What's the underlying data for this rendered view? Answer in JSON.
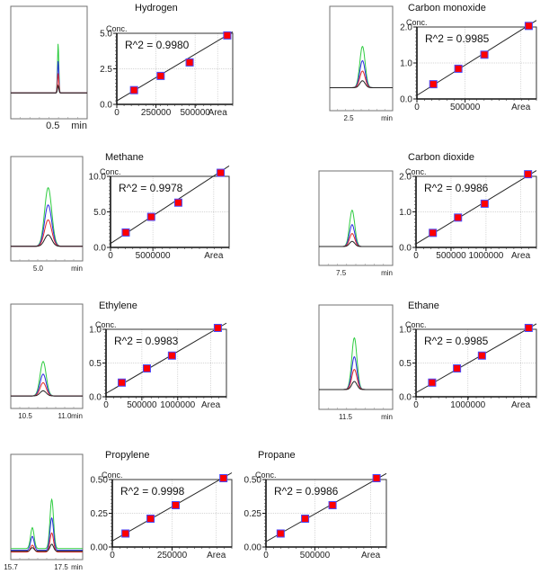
{
  "colors": {
    "standard_1": "#2ecc40",
    "standard_2": "#2a2ae0",
    "standard_3": "#e02a2a",
    "standard_4": "#222222",
    "marker_fill": "#ff0000",
    "marker_edge": "#4a4aff",
    "fit_line": "#222222",
    "grid": "#c8c8c8"
  },
  "chart_data": [
    {
      "type": "scatter",
      "compound": "Hydrogen",
      "title": "Hydrogen",
      "ylabel": "Conc.",
      "xlabel": "Area",
      "annotation": "R^2 = 0.9980",
      "x_ticks": [
        0,
        250000,
        500000
      ],
      "x_tick_labels": [
        "0",
        "250000",
        "500000"
      ],
      "y_ticks": [
        0.0,
        2.5,
        5.0
      ],
      "y_tick_labels": [
        "0.0",
        "2.5",
        "5.0"
      ],
      "xlim": [
        0,
        740000
      ],
      "ylim": [
        0,
        5.0
      ],
      "points": [
        [
          110000,
          1.0
        ],
        [
          280000,
          2.0
        ],
        [
          465000,
          2.95
        ],
        [
          705000,
          4.85
        ]
      ],
      "fit": {
        "slope": 6.55e-06,
        "intercept": 0.25
      },
      "chromatogram": {
        "axis_label": "min",
        "tick_labels": [
          "0.5"
        ],
        "peaks": [
          {
            "pos": 0.62,
            "width": 0.012,
            "heights": [
              0.8,
              0.52,
              0.32,
              0.12
            ]
          }
        ],
        "baseline_offsets": [
          0,
          0,
          0,
          0
        ]
      }
    },
    {
      "type": "scatter",
      "compound": "Carbon monoxide",
      "title": "Carbon monoxide",
      "ylabel": "Conc.",
      "xlabel": "Area",
      "annotation": "R^2 = 0.9985",
      "x_ticks": [
        0,
        500000
      ],
      "x_tick_labels": [
        "0",
        "500000"
      ],
      "y_ticks": [
        0.0,
        1.0,
        2.0
      ],
      "y_tick_labels": [
        "0.0",
        "1.0",
        "2.0"
      ],
      "xlim": [
        0,
        1240000
      ],
      "ylim": [
        0,
        2.0
      ],
      "points": [
        [
          170000,
          0.41
        ],
        [
          430000,
          0.84
        ],
        [
          700000,
          1.23
        ],
        [
          1160000,
          2.03
        ]
      ],
      "fit": {
        "slope": 1.68e-06,
        "intercept": 0.1
      },
      "chromatogram": {
        "axis_label": "min",
        "tick_labels": [
          "2.5"
        ],
        "peaks": [
          {
            "pos": 0.52,
            "width": 0.06,
            "heights": [
              0.72,
              0.47,
              0.29,
              0.12
            ]
          }
        ],
        "baseline_offsets": [
          0,
          0,
          0,
          0
        ]
      }
    },
    {
      "type": "scatter",
      "compound": "Methane",
      "title": "Methane",
      "ylabel": "Conc.",
      "xlabel": "Area",
      "annotation": "R^2 = 0.9978",
      "x_ticks": [
        0,
        5000000
      ],
      "x_tick_labels": [
        "0",
        "5000000"
      ],
      "y_ticks": [
        0.0,
        5.0,
        10.0
      ],
      "y_tick_labels": [
        "0.0",
        "5.0",
        "10.0"
      ],
      "xlim": [
        0,
        14000000
      ],
      "ylim": [
        0,
        10.0
      ],
      "points": [
        [
          1800000,
          2.1
        ],
        [
          4800000,
          4.3
        ],
        [
          8000000,
          6.3
        ],
        [
          13000000,
          10.5
        ]
      ],
      "fit": {
        "slope": 7.8e-07,
        "intercept": 0.55
      },
      "chromatogram": {
        "axis_label": "min",
        "tick_labels": [
          "5.0"
        ],
        "peaks": [
          {
            "pos": 0.52,
            "width": 0.07,
            "heights": [
              1.02,
              0.72,
              0.46,
              0.2
            ]
          }
        ],
        "baseline_offsets": [
          0,
          0,
          0,
          0
        ]
      }
    },
    {
      "type": "scatter",
      "compound": "Carbon dioxide",
      "title": "Carbon dioxide",
      "ylabel": "Conc.",
      "xlabel": "Area",
      "annotation": "R^2 = 0.9986",
      "x_ticks": [
        0,
        500000,
        1000000
      ],
      "x_tick_labels": [
        "0",
        "500000",
        "1000000"
      ],
      "y_ticks": [
        0.0,
        1.0,
        2.0
      ],
      "y_tick_labels": [
        "0.0",
        "1.0",
        "2.0"
      ],
      "xlim": [
        0,
        1720000
      ],
      "ylim": [
        0,
        2.0
      ],
      "points": [
        [
          240000,
          0.41
        ],
        [
          600000,
          0.84
        ],
        [
          980000,
          1.23
        ],
        [
          1600000,
          2.06
        ]
      ],
      "fit": {
        "slope": 1.2e-06,
        "intercept": 0.1
      },
      "chromatogram": {
        "axis_label": "min",
        "tick_labels": [
          "7.5"
        ],
        "peaks": [
          {
            "pos": 0.45,
            "width": 0.05,
            "heights": [
              0.7,
              0.42,
              0.25,
              0.1
            ]
          }
        ],
        "baseline_offsets": [
          0,
          0,
          0,
          0
        ]
      }
    },
    {
      "type": "scatter",
      "compound": "Ethylene",
      "title": "Ethylene",
      "ylabel": "Conc.",
      "xlabel": "Area",
      "annotation": "R^2 = 0.9983",
      "x_ticks": [
        0,
        500000,
        1000000
      ],
      "x_tick_labels": [
        "0",
        "500000",
        "1000000"
      ],
      "y_ticks": [
        0.0,
        0.5,
        1.0
      ],
      "y_tick_labels": [
        "0.0",
        "0.5",
        "1.0"
      ],
      "xlim": [
        0,
        1680000
      ],
      "ylim": [
        0,
        1.0
      ],
      "points": [
        [
          220000,
          0.21
        ],
        [
          570000,
          0.42
        ],
        [
          920000,
          0.61
        ],
        [
          1560000,
          1.02
        ]
      ],
      "fit": {
        "slope": 6.2e-07,
        "intercept": 0.05
      },
      "chromatogram": {
        "axis_label": "min",
        "tick_labels": [
          "10.5",
          "11.0"
        ],
        "peaks": [
          {
            "pos": 0.45,
            "width": 0.06,
            "heights": [
              0.6,
              0.38,
              0.23,
              0.09
            ]
          }
        ],
        "baseline_offsets": [
          0,
          0,
          0,
          0
        ]
      }
    },
    {
      "type": "scatter",
      "compound": "Ethane",
      "title": "Ethane",
      "ylabel": "Conc.",
      "xlabel": "Area",
      "annotation": "R^2 = 0.9985",
      "x_ticks": [
        0,
        1000000
      ],
      "x_tick_labels": [
        "0",
        "1000000"
      ],
      "y_ticks": [
        0.0,
        0.5,
        1.0
      ],
      "y_tick_labels": [
        "0.0",
        "0.5",
        "1.0"
      ],
      "xlim": [
        0,
        2320000
      ],
      "ylim": [
        0,
        1.0
      ],
      "points": [
        [
          310000,
          0.21
        ],
        [
          790000,
          0.42
        ],
        [
          1270000,
          0.61
        ],
        [
          2170000,
          1.02
        ]
      ],
      "fit": {
        "slope": 4.4e-07,
        "intercept": 0.06
      },
      "chromatogram": {
        "axis_label": "min",
        "tick_labels": [
          "11.5"
        ],
        "peaks": [
          {
            "pos": 0.48,
            "width": 0.05,
            "heights": [
              0.9,
              0.57,
              0.35,
              0.14
            ]
          }
        ],
        "baseline_offsets": [
          0,
          0,
          0,
          0
        ]
      }
    },
    {
      "type": "scatter",
      "compound": "Propylene",
      "title": "Propylene",
      "ylabel": "Conc.",
      "xlabel": "Area",
      "annotation": "R^2 = 0.9998",
      "x_ticks": [
        0,
        250000
      ],
      "x_tick_labels": [
        "0",
        "250000"
      ],
      "y_ticks": [
        0.0,
        0.25,
        0.5
      ],
      "y_tick_labels": [
        "0.00",
        "0.25",
        "0.50"
      ],
      "xlim": [
        0,
        500000
      ],
      "ylim": [
        0,
        0.5
      ],
      "points": [
        [
          55000,
          0.1
        ],
        [
          160000,
          0.21
        ],
        [
          265000,
          0.31
        ],
        [
          465000,
          0.51
        ]
      ],
      "fit": {
        "slope": 1.01e-06,
        "intercept": 0.045
      },
      "chromatogram": {
        "axis_label": "min",
        "tick_labels": [
          "15.7",
          "17.5"
        ],
        "peaks": [
          {
            "pos": 0.3,
            "width": 0.035,
            "heights": [
              0.36,
              0.24,
              0.12,
              0.06
            ]
          },
          {
            "pos": 0.57,
            "width": 0.035,
            "heights": [
              0.85,
              0.56,
              0.33,
              0.12
            ]
          }
        ],
        "baseline_offsets": [
          0.1,
          0.07,
          0.04,
          0.055
        ]
      }
    },
    {
      "type": "scatter",
      "compound": "Propane",
      "title": "Propane",
      "ylabel": "Conc.",
      "xlabel": "Area",
      "annotation": "R^2 = 0.9986",
      "x_ticks": [
        0,
        500000
      ],
      "x_tick_labels": [
        "0",
        "500000"
      ],
      "y_ticks": [
        0.0,
        0.25,
        0.5
      ],
      "y_tick_labels": [
        "0.00",
        "0.25",
        "0.50"
      ],
      "xlim": [
        0,
        1230000
      ],
      "ylim": [
        0,
        0.5
      ],
      "points": [
        [
          150000,
          0.1
        ],
        [
          400000,
          0.21
        ],
        [
          680000,
          0.31
        ],
        [
          1130000,
          0.51
        ]
      ],
      "fit": {
        "slope": 4.1e-07,
        "intercept": 0.04
      },
      "chromatogram": null
    }
  ]
}
